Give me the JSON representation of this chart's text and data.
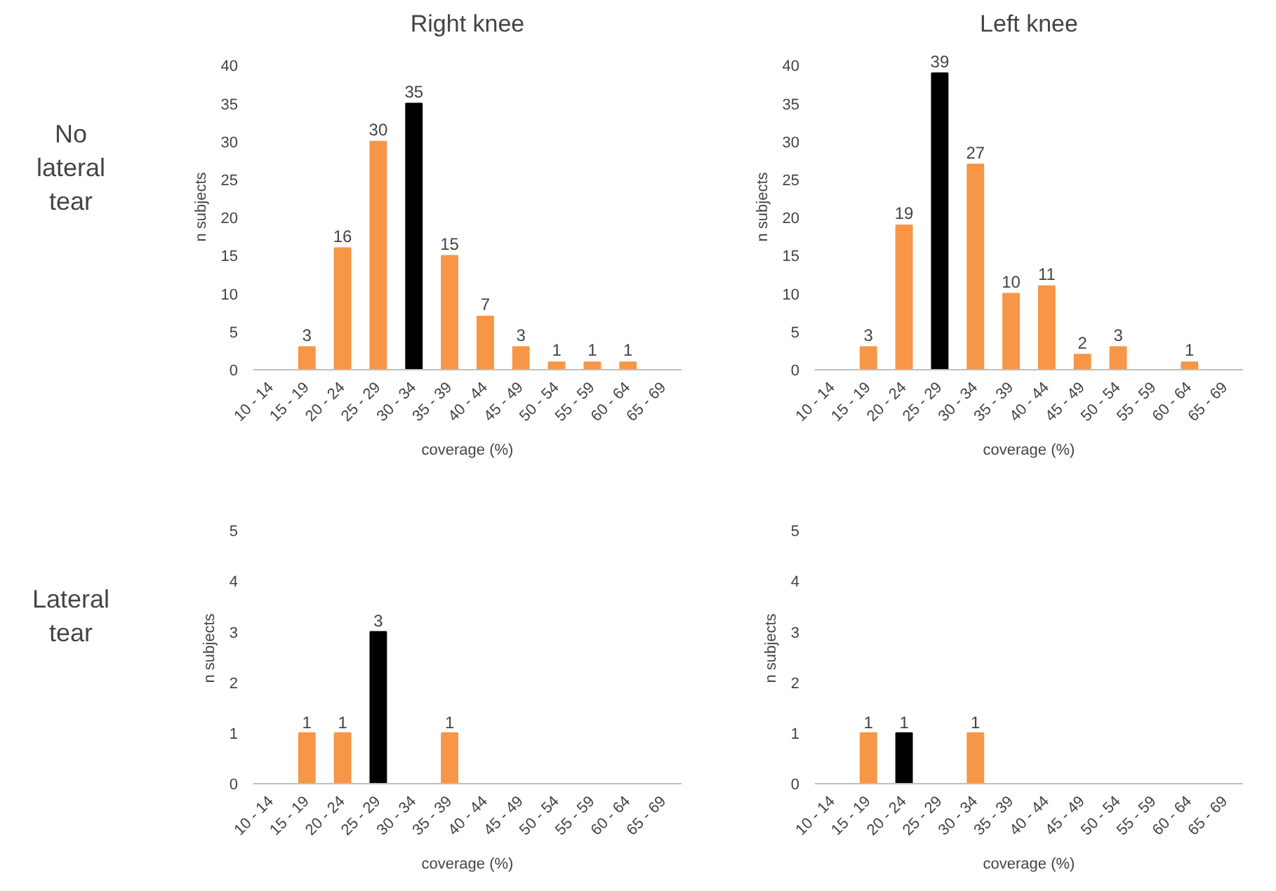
{
  "chart_data": [
    {
      "type": "bar",
      "title": "Right knee",
      "annotations": [
        "No lateral tear"
      ],
      "xlabel": "coverage (%)",
      "ylabel": "n subjects",
      "categories": [
        "10 - 14",
        "15 - 19",
        "20 - 24",
        "25 - 29",
        "30 - 34",
        "35 - 39",
        "40 - 44",
        "45 - 49",
        "50 - 54",
        "55 - 59",
        "60 - 64",
        "65 - 69"
      ],
      "values": [
        0,
        3,
        16,
        30,
        35,
        15,
        7,
        3,
        1,
        1,
        1,
        0
      ],
      "colors": [
        "#f79646",
        "#f79646",
        "#f79646",
        "#f79646",
        "#000000",
        "#f79646",
        "#f79646",
        "#f79646",
        "#f79646",
        "#f79646",
        "#f79646",
        "#f79646"
      ],
      "value_labels": [
        null,
        "3",
        "16",
        "30",
        "35",
        "15",
        "7",
        "3",
        "1",
        "1",
        "1",
        null
      ],
      "ylim": [
        0,
        40
      ],
      "yticks": [
        0,
        5,
        10,
        15,
        20,
        25,
        30,
        35,
        40
      ],
      "grid": false
    },
    {
      "type": "bar",
      "title": "Left knee",
      "xlabel": "coverage (%)",
      "ylabel": "n subjects",
      "categories": [
        "10 - 14",
        "15 - 19",
        "20 - 24",
        "25 - 29",
        "30 - 34",
        "35 - 39",
        "40 - 44",
        "45 - 49",
        "50 - 54",
        "55 - 59",
        "60 - 64",
        "65 - 69"
      ],
      "values": [
        0,
        3,
        19,
        39,
        27,
        10,
        11,
        2,
        3,
        0,
        1,
        0
      ],
      "colors": [
        "#f79646",
        "#f79646",
        "#f79646",
        "#000000",
        "#f79646",
        "#f79646",
        "#f79646",
        "#f79646",
        "#f79646",
        "#f79646",
        "#f79646",
        "#f79646"
      ],
      "value_labels": [
        null,
        "3",
        "19",
        "39",
        "27",
        "10",
        "11",
        "2",
        "3",
        null,
        "1",
        null
      ],
      "ylim": [
        0,
        40
      ],
      "yticks": [
        0,
        5,
        10,
        15,
        20,
        25,
        30,
        35,
        40
      ],
      "grid": false
    },
    {
      "type": "bar",
      "annotations": [
        "Lateral tear"
      ],
      "xlabel": "coverage (%)",
      "ylabel": "n subjects",
      "categories": [
        "10 - 14",
        "15 - 19",
        "20 - 24",
        "25 - 29",
        "30 - 34",
        "35 - 39",
        "40 - 44",
        "45 - 49",
        "50 - 54",
        "55 - 59",
        "60 - 64",
        "65 - 69"
      ],
      "values": [
        0,
        1,
        1,
        3,
        0,
        1,
        0,
        0,
        0,
        0,
        0,
        0
      ],
      "colors": [
        "#f79646",
        "#f79646",
        "#f79646",
        "#000000",
        "#f79646",
        "#f79646",
        "#f79646",
        "#f79646",
        "#f79646",
        "#f79646",
        "#f79646",
        "#f79646"
      ],
      "value_labels": [
        null,
        "1",
        "1",
        "3",
        null,
        "1",
        null,
        null,
        null,
        null,
        null,
        null
      ],
      "ylim": [
        0,
        5
      ],
      "yticks": [
        0,
        1,
        2,
        3,
        4,
        5
      ],
      "grid": false
    },
    {
      "type": "bar",
      "xlabel": "coverage (%)",
      "ylabel": "n subjects",
      "categories": [
        "10 - 14",
        "15 - 19",
        "20 - 24",
        "25 - 29",
        "30 - 34",
        "35 - 39",
        "40 - 44",
        "45 - 49",
        "50 - 54",
        "55 - 59",
        "60 - 64",
        "65 - 69"
      ],
      "values": [
        0,
        1,
        1,
        0,
        1,
        0,
        0,
        0,
        0,
        0,
        0,
        0
      ],
      "colors": [
        "#f79646",
        "#f79646",
        "#000000",
        "#f79646",
        "#f79646",
        "#f79646",
        "#f79646",
        "#f79646",
        "#f79646",
        "#f79646",
        "#f79646",
        "#f79646"
      ],
      "value_labels": [
        null,
        "1",
        "1",
        null,
        "1",
        null,
        null,
        null,
        null,
        null,
        null,
        null
      ],
      "ylim": [
        0,
        5
      ],
      "yticks": [
        0,
        1,
        2,
        3,
        4,
        5
      ],
      "grid": false
    }
  ]
}
